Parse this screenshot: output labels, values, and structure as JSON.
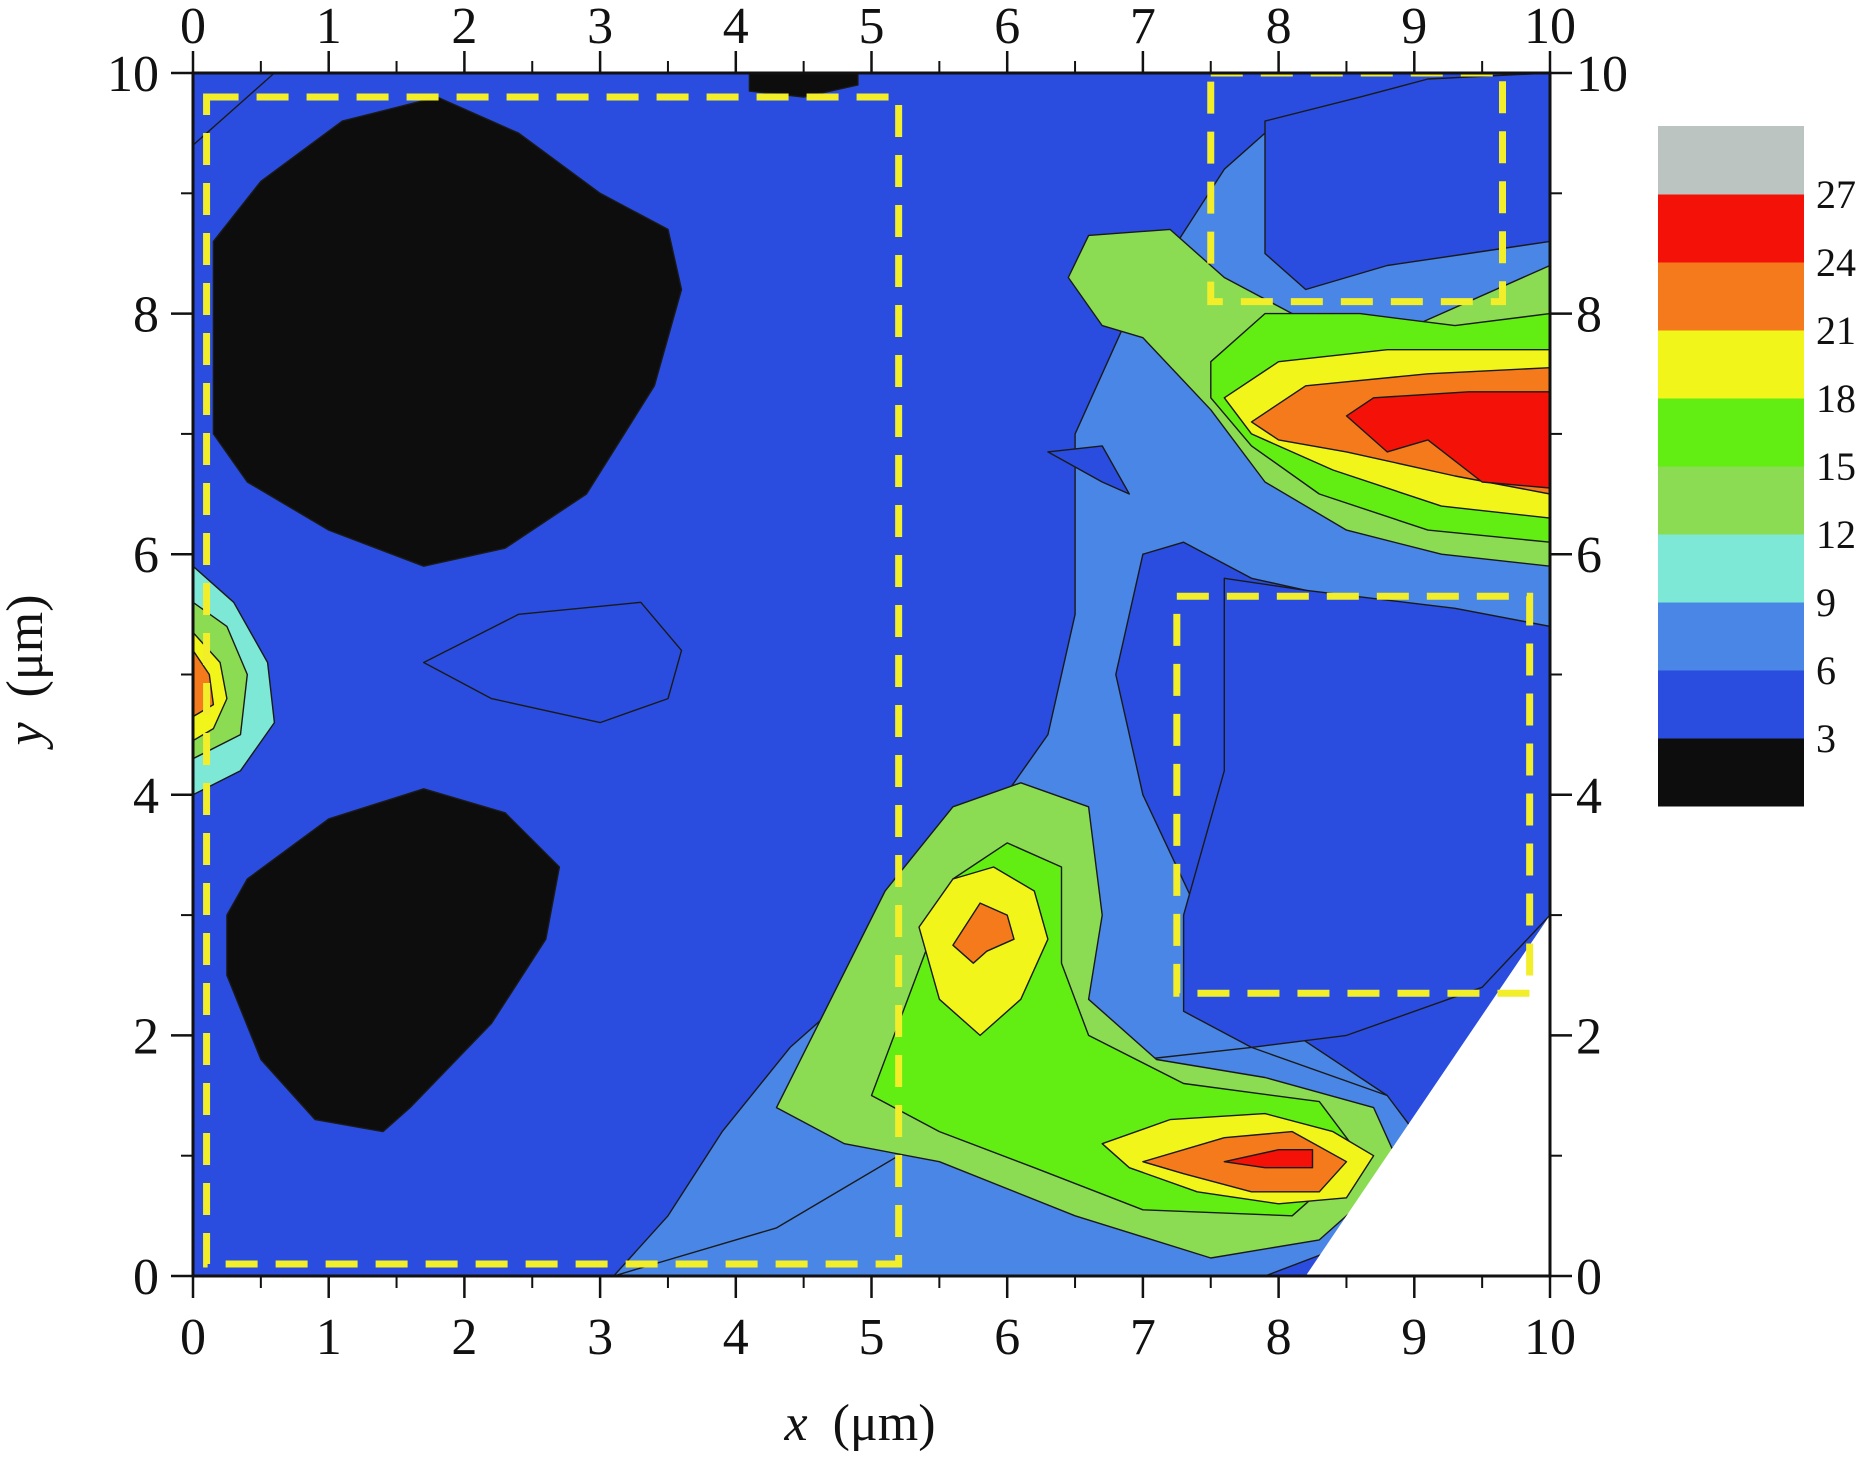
{
  "chart_data": {
    "type": "heatmap",
    "subtype": "filled-contour",
    "xlabel_var": "x",
    "xlabel_unit": "(μm)",
    "ylabel_var": "y",
    "ylabel_unit": "(μm)",
    "xlim": [
      0,
      10
    ],
    "ylim": [
      0,
      10
    ],
    "x_ticks": [
      "0",
      "1",
      "2",
      "3",
      "4",
      "5",
      "6",
      "7",
      "8",
      "9",
      "10"
    ],
    "y_ticks": [
      "0",
      "2",
      "4",
      "6",
      "8",
      "10"
    ],
    "x_minor_step": 0.5,
    "y_minor_step": 1,
    "grid": false,
    "colorbar": {
      "placement": "right",
      "levels": [
        0,
        3,
        6,
        9,
        12,
        15,
        18,
        21,
        24,
        27,
        30
      ],
      "tick_labels": [
        "3",
        "6",
        "9",
        "12",
        "15",
        "18",
        "21",
        "24",
        "27"
      ],
      "colors": [
        "#0d0d0d",
        "#2a4ddf",
        "#4a86e6",
        "#7ee8d6",
        "#8bdc52",
        "#62ee12",
        "#f2f51a",
        "#f47a1c",
        "#f41208",
        "#bcc4c2"
      ]
    },
    "contour_line_color": "#1a1a1a",
    "regions": [
      {
        "level": 0,
        "label": "black blob top-left",
        "points": [
          [
            0.15,
            8.6
          ],
          [
            0.5,
            9.1
          ],
          [
            1.1,
            9.6
          ],
          [
            1.8,
            9.8
          ],
          [
            2.4,
            9.5
          ],
          [
            3.0,
            9.0
          ],
          [
            3.5,
            8.7
          ],
          [
            3.6,
            8.2
          ],
          [
            3.4,
            7.4
          ],
          [
            2.9,
            6.5
          ],
          [
            2.3,
            6.05
          ],
          [
            1.7,
            5.9
          ],
          [
            1.0,
            6.2
          ],
          [
            0.4,
            6.6
          ],
          [
            0.15,
            7.0
          ]
        ]
      },
      {
        "level": 0,
        "label": "black blob bottom-left",
        "points": [
          [
            0.4,
            3.3
          ],
          [
            1.0,
            3.8
          ],
          [
            1.7,
            4.05
          ],
          [
            2.3,
            3.85
          ],
          [
            2.7,
            3.4
          ],
          [
            2.6,
            2.8
          ],
          [
            2.2,
            2.1
          ],
          [
            1.6,
            1.4
          ],
          [
            1.4,
            1.2
          ],
          [
            0.9,
            1.3
          ],
          [
            0.5,
            1.8
          ],
          [
            0.25,
            2.5
          ],
          [
            0.25,
            3.0
          ]
        ]
      },
      {
        "level": 0,
        "label": "black blob top-edge",
        "points": [
          [
            4.1,
            10
          ],
          [
            4.1,
            9.85
          ],
          [
            4.5,
            9.8
          ],
          [
            4.9,
            9.9
          ],
          [
            4.9,
            10
          ]
        ]
      },
      {
        "level": 2,
        "label": "cyan band",
        "points": [
          [
            3.1,
            0
          ],
          [
            3.5,
            0.5
          ],
          [
            3.9,
            1.2
          ],
          [
            4.4,
            1.9
          ],
          [
            5.2,
            2.7
          ],
          [
            5.8,
            3.7
          ],
          [
            6.3,
            4.5
          ],
          [
            6.5,
            5.5
          ],
          [
            6.5,
            7.0
          ],
          [
            6.9,
            8.0
          ],
          [
            7.2,
            8.5
          ],
          [
            7.6,
            9.2
          ],
          [
            8.0,
            9.6
          ],
          [
            8.7,
            9.8
          ],
          [
            10.0,
            9.9
          ],
          [
            10.0,
            5.2
          ],
          [
            9.2,
            5.4
          ],
          [
            8.6,
            5.6
          ],
          [
            7.8,
            5.8
          ],
          [
            7.3,
            6.1
          ],
          [
            7.0,
            6.0
          ],
          [
            6.8,
            5.0
          ],
          [
            7.0,
            4.0
          ],
          [
            7.5,
            2.8
          ],
          [
            8.0,
            2.1
          ],
          [
            8.8,
            1.5
          ],
          [
            8.9,
            0.9
          ],
          [
            8.5,
            0.4
          ],
          [
            7.9,
            0.0
          ]
        ]
      },
      {
        "level": 1,
        "label": "light blue cap top-right",
        "points": [
          [
            7.9,
            9.6
          ],
          [
            8.6,
            9.8
          ],
          [
            9.1,
            9.95
          ],
          [
            10.0,
            10.0
          ],
          [
            10.0,
            8.6
          ],
          [
            9.4,
            8.5
          ],
          [
            8.8,
            8.4
          ],
          [
            8.2,
            8.2
          ],
          [
            7.9,
            8.5
          ]
        ]
      },
      {
        "level": 1,
        "label": "light blue patch right",
        "points": [
          [
            7.6,
            5.8
          ],
          [
            8.2,
            5.7
          ],
          [
            9.3,
            5.55
          ],
          [
            10.0,
            5.4
          ],
          [
            10.0,
            3.0
          ],
          [
            9.5,
            2.4
          ],
          [
            8.5,
            2.0
          ],
          [
            7.8,
            1.9
          ],
          [
            7.3,
            2.2
          ],
          [
            7.3,
            3.0
          ],
          [
            7.6,
            4.2
          ]
        ]
      },
      {
        "level": 2,
        "label": "cyan lower band",
        "points": [
          [
            3.1,
            0
          ],
          [
            4.3,
            0.4
          ],
          [
            5.2,
            1.0
          ],
          [
            6.1,
            1.5
          ],
          [
            7.0,
            1.8
          ],
          [
            7.8,
            1.9
          ],
          [
            8.8,
            1.5
          ],
          [
            9.0,
            1.2
          ],
          [
            8.6,
            0.3
          ],
          [
            7.9,
            0
          ]
        ]
      },
      {
        "level": 4,
        "label": "green lower hump",
        "points": [
          [
            4.3,
            1.4
          ],
          [
            4.7,
            2.3
          ],
          [
            5.1,
            3.2
          ],
          [
            5.6,
            3.9
          ],
          [
            6.1,
            4.1
          ],
          [
            6.6,
            3.9
          ],
          [
            6.7,
            3.0
          ],
          [
            6.6,
            2.3
          ],
          [
            7.1,
            1.8
          ],
          [
            7.9,
            1.65
          ],
          [
            8.7,
            1.4
          ],
          [
            8.9,
            0.9
          ],
          [
            8.3,
            0.3
          ],
          [
            7.5,
            0.15
          ],
          [
            6.5,
            0.5
          ],
          [
            5.5,
            0.95
          ],
          [
            4.8,
            1.1
          ]
        ]
      },
      {
        "level": 5,
        "label": "bright green lower",
        "points": [
          [
            5.0,
            1.5
          ],
          [
            5.3,
            2.4
          ],
          [
            5.6,
            3.3
          ],
          [
            6.0,
            3.6
          ],
          [
            6.4,
            3.4
          ],
          [
            6.4,
            2.6
          ],
          [
            6.6,
            2.0
          ],
          [
            7.3,
            1.6
          ],
          [
            8.3,
            1.45
          ],
          [
            8.6,
            1.0
          ],
          [
            8.1,
            0.5
          ],
          [
            7.0,
            0.55
          ],
          [
            6.2,
            0.9
          ],
          [
            5.5,
            1.2
          ]
        ]
      },
      {
        "level": 6,
        "label": "yellow lower peak",
        "points": [
          [
            5.35,
            2.9
          ],
          [
            5.6,
            3.3
          ],
          [
            5.9,
            3.4
          ],
          [
            6.2,
            3.2
          ],
          [
            6.3,
            2.8
          ],
          [
            6.1,
            2.3
          ],
          [
            5.8,
            2.0
          ],
          [
            5.5,
            2.3
          ]
        ]
      },
      {
        "level": 7,
        "label": "orange lower peak",
        "points": [
          [
            5.6,
            2.75
          ],
          [
            5.8,
            3.1
          ],
          [
            6.0,
            3.0
          ],
          [
            6.05,
            2.8
          ],
          [
            5.85,
            2.7
          ],
          [
            5.75,
            2.6
          ]
        ]
      },
      {
        "level": 6,
        "label": "yellow bottom-right",
        "points": [
          [
            6.7,
            1.1
          ],
          [
            7.2,
            1.3
          ],
          [
            7.9,
            1.35
          ],
          [
            8.4,
            1.2
          ],
          [
            8.7,
            1.0
          ],
          [
            8.5,
            0.65
          ],
          [
            8.0,
            0.6
          ],
          [
            7.4,
            0.7
          ],
          [
            6.9,
            0.9
          ]
        ]
      },
      {
        "level": 7,
        "label": "orange bottom-right",
        "points": [
          [
            7.0,
            0.95
          ],
          [
            7.6,
            1.15
          ],
          [
            8.1,
            1.2
          ],
          [
            8.5,
            0.95
          ],
          [
            8.3,
            0.7
          ],
          [
            7.8,
            0.7
          ],
          [
            7.3,
            0.85
          ]
        ]
      },
      {
        "level": 8,
        "label": "red bottom-right",
        "points": [
          [
            7.6,
            0.95
          ],
          [
            8.0,
            1.05
          ],
          [
            8.25,
            1.05
          ],
          [
            8.25,
            0.9
          ],
          [
            7.9,
            0.9
          ]
        ]
      },
      {
        "level": 4,
        "label": "green upper arm",
        "points": [
          [
            6.45,
            8.3
          ],
          [
            6.6,
            8.65
          ],
          [
            7.2,
            8.7
          ],
          [
            7.6,
            8.3
          ],
          [
            8.1,
            8.0
          ],
          [
            9.0,
            7.9
          ],
          [
            10.0,
            8.4
          ],
          [
            10.0,
            5.9
          ],
          [
            9.2,
            6.0
          ],
          [
            8.5,
            6.2
          ],
          [
            7.9,
            6.6
          ],
          [
            7.5,
            7.2
          ],
          [
            7.0,
            7.8
          ],
          [
            6.7,
            7.9
          ]
        ]
      },
      {
        "level": 5,
        "label": "bright green upper",
        "points": [
          [
            7.5,
            7.6
          ],
          [
            7.9,
            8.0
          ],
          [
            8.6,
            8.0
          ],
          [
            9.3,
            7.9
          ],
          [
            10.0,
            8.0
          ],
          [
            10.0,
            6.1
          ],
          [
            9.1,
            6.2
          ],
          [
            8.3,
            6.5
          ],
          [
            7.8,
            6.9
          ],
          [
            7.5,
            7.3
          ]
        ]
      },
      {
        "level": 6,
        "label": "yellow upper",
        "points": [
          [
            7.6,
            7.3
          ],
          [
            8.0,
            7.6
          ],
          [
            8.8,
            7.7
          ],
          [
            9.6,
            7.7
          ],
          [
            10.0,
            7.7
          ],
          [
            10.0,
            6.3
          ],
          [
            9.2,
            6.4
          ],
          [
            8.4,
            6.7
          ],
          [
            7.8,
            7.0
          ]
        ]
      },
      {
        "level": 7,
        "label": "orange upper",
        "points": [
          [
            7.8,
            7.1
          ],
          [
            8.2,
            7.4
          ],
          [
            9.1,
            7.5
          ],
          [
            10.0,
            7.55
          ],
          [
            10.0,
            6.5
          ],
          [
            9.3,
            6.65
          ],
          [
            8.5,
            6.85
          ],
          [
            8.0,
            6.95
          ]
        ]
      },
      {
        "level": 8,
        "label": "red upper",
        "points": [
          [
            8.5,
            7.15
          ],
          [
            8.7,
            7.3
          ],
          [
            9.4,
            7.35
          ],
          [
            10.0,
            7.35
          ],
          [
            10.0,
            6.55
          ],
          [
            9.5,
            6.6
          ],
          [
            9.1,
            6.95
          ],
          [
            8.8,
            6.85
          ]
        ]
      },
      {
        "level": 3,
        "label": "green left edge",
        "points": [
          [
            0,
            5.9
          ],
          [
            0.3,
            5.6
          ],
          [
            0.55,
            5.1
          ],
          [
            0.6,
            4.6
          ],
          [
            0.35,
            4.2
          ],
          [
            0,
            4.0
          ]
        ]
      },
      {
        "level": 4,
        "label": "bright green left edge",
        "points": [
          [
            0,
            5.6
          ],
          [
            0.25,
            5.4
          ],
          [
            0.4,
            5.0
          ],
          [
            0.35,
            4.5
          ],
          [
            0,
            4.3
          ]
        ]
      },
      {
        "level": 6,
        "label": "yellow left edge",
        "points": [
          [
            0,
            5.35
          ],
          [
            0.2,
            5.1
          ],
          [
            0.25,
            4.8
          ],
          [
            0.15,
            4.55
          ],
          [
            0,
            4.45
          ]
        ]
      },
      {
        "level": 7,
        "label": "orange left edge",
        "points": [
          [
            0,
            5.2
          ],
          [
            0.12,
            5.0
          ],
          [
            0.15,
            4.75
          ],
          [
            0,
            4.65
          ]
        ]
      },
      {
        "level": 1,
        "label": "light blue island center-left",
        "points": [
          [
            1.7,
            5.1
          ],
          [
            2.4,
            5.5
          ],
          [
            3.3,
            5.6
          ],
          [
            3.6,
            5.2
          ],
          [
            3.5,
            4.8
          ],
          [
            3.0,
            4.6
          ],
          [
            2.2,
            4.8
          ]
        ]
      },
      {
        "level": 1,
        "label": "light blue sliver center",
        "points": [
          [
            6.3,
            6.85
          ],
          [
            6.7,
            6.9
          ],
          [
            6.9,
            6.5
          ],
          [
            6.7,
            6.6
          ]
        ]
      },
      {
        "level": 1,
        "label": "light blue top-left strip",
        "points": [
          [
            0,
            10
          ],
          [
            0.6,
            10
          ],
          [
            0.3,
            9.7
          ],
          [
            0,
            9.4
          ]
        ]
      }
    ],
    "dashed_boxes": [
      {
        "x0": 0.1,
        "y0": 0.1,
        "x1": 5.2,
        "y1": 9.8
      },
      {
        "x0": 7.5,
        "y0": 8.1,
        "x1": 9.65,
        "y1": 10.0
      },
      {
        "x0": 7.25,
        "y0": 2.35,
        "x1": 9.85,
        "y1": 5.65
      }
    ],
    "dashed_box_color": "#f2ee2a",
    "blank_triangle": [
      [
        10.0,
        0
      ],
      [
        10.0,
        3.0
      ],
      [
        8.2,
        0
      ]
    ]
  }
}
